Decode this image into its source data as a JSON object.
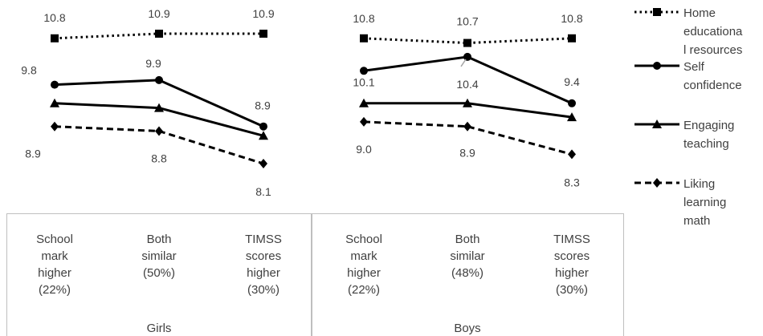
{
  "chart_data": {
    "type": "line",
    "groups": [
      {
        "name": "Girls",
        "categories": [
          [
            "School",
            "mark",
            "higher",
            "(22%)"
          ],
          [
            "Both",
            "similar",
            "(50%)"
          ],
          [
            "TIMSS",
            "scores",
            "higher",
            "(30%)"
          ]
        ],
        "series": [
          {
            "name": "Home educational resources",
            "values": [
              10.8,
              10.9,
              10.9
            ],
            "labels": [
              "10.8",
              "10.9",
              "10.9"
            ]
          },
          {
            "name": "Self confidence",
            "values": [
              9.8,
              9.9,
              8.9
            ],
            "labels": [
              "9.8",
              "9.9",
              "8.9"
            ]
          },
          {
            "name": "Engaging teaching",
            "values": [
              9.4,
              9.3,
              8.7
            ],
            "labels": [
              "",
              "",
              ""
            ]
          },
          {
            "name": "Liking learning math",
            "values": [
              8.9,
              8.8,
              8.1
            ],
            "labels": [
              "8.9",
              "8.8",
              "8.1"
            ]
          }
        ]
      },
      {
        "name": "Boys",
        "categories": [
          [
            "School",
            "mark",
            "higher",
            "(22%)"
          ],
          [
            "Both",
            "similar",
            "(48%)"
          ],
          [
            "TIMSS",
            "scores",
            "higher",
            "(30%)"
          ]
        ],
        "series": [
          {
            "name": "Home educational resources",
            "values": [
              10.8,
              10.7,
              10.8
            ],
            "labels": [
              "10.8",
              "10.7",
              "10.8"
            ]
          },
          {
            "name": "Self confidence",
            "values": [
              10.1,
              10.4,
              9.4
            ],
            "labels": [
              "10.1",
              "10.4",
              "9.4"
            ]
          },
          {
            "name": "Engaging teaching",
            "values": [
              9.4,
              9.4,
              9.1
            ],
            "labels": [
              "",
              "",
              ""
            ]
          },
          {
            "name": "Liking learning math",
            "values": [
              9.0,
              8.9,
              8.3
            ],
            "labels": [
              "9.0",
              "8.9",
              "8.3"
            ]
          }
        ]
      }
    ],
    "legend": {
      "placement": "right",
      "entries": [
        {
          "lines": [
            "Home",
            "educationa",
            "l resources"
          ],
          "marker": "square",
          "dash": "dotted"
        },
        {
          "lines": [
            "Self",
            "confidence"
          ],
          "marker": "circle",
          "dash": "solid"
        },
        {
          "lines": [
            "Engaging",
            "teaching"
          ],
          "marker": "triangle",
          "dash": "solid"
        },
        {
          "lines": [
            "Liking",
            "learning",
            "math"
          ],
          "marker": "diamond",
          "dash": "dashed"
        }
      ]
    },
    "ylim": [
      7.8,
      11.2
    ],
    "grid": false,
    "colors": {
      "line": "#000000",
      "text": "#404040",
      "border": "#bfbfbf"
    }
  }
}
